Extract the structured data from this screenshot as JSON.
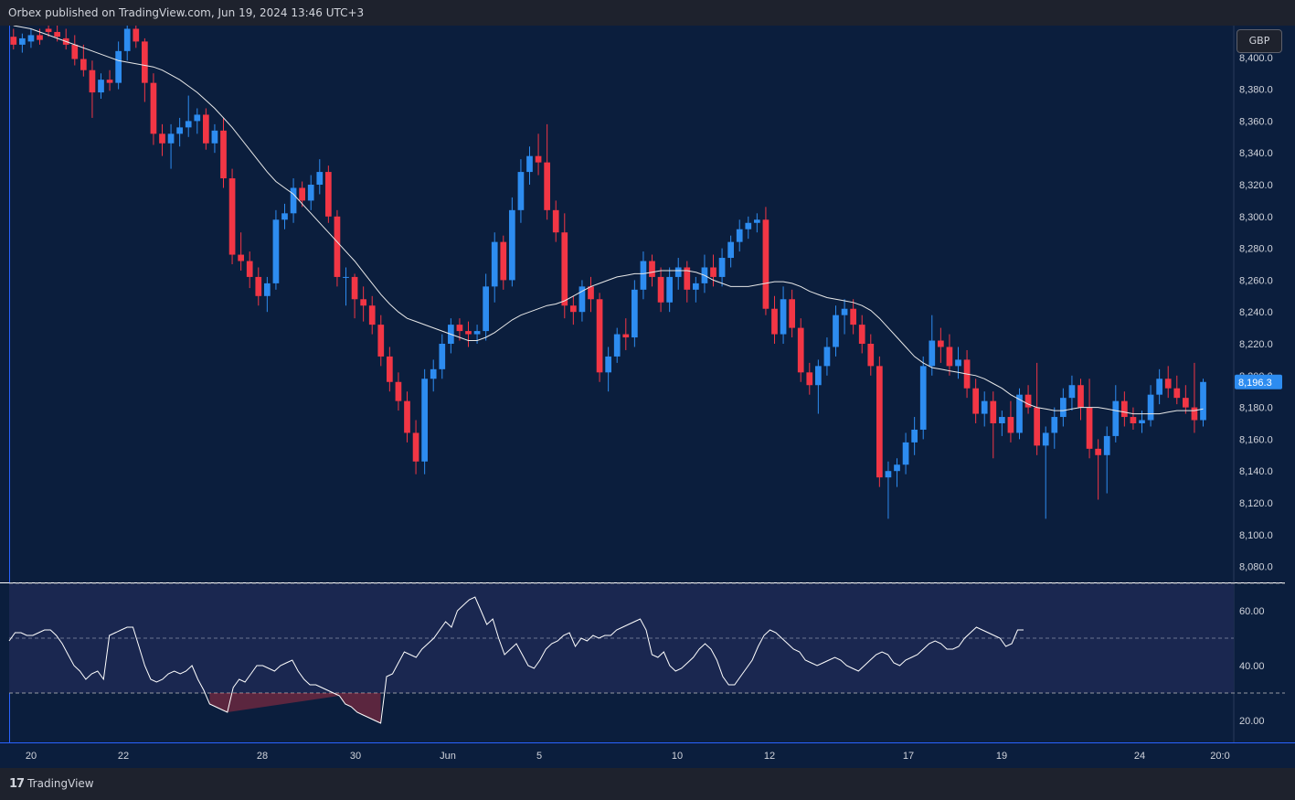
{
  "header": {
    "publisher_text": "Orbex published on TradingView.com, Jun 19, 2024 13:46 UTC+3"
  },
  "currency": "GBP",
  "footer": {
    "logo_mark": "17",
    "logo_text": "TradingView"
  },
  "colors": {
    "background": "#0b1e3d",
    "up": "#2d8cf0",
    "down": "#f23645",
    "ma": "#e8e8e8",
    "rsi": "#ffffff",
    "rsi_band": "#1a2750",
    "price_badge": "#2d8cf0"
  },
  "chart_data": [
    {
      "type": "candlestick",
      "title": "",
      "currency": "GBP",
      "last_price_label": "8,196.3",
      "ylim": [
        8070,
        8420
      ],
      "y_ticks": [
        8080,
        8100,
        8120,
        8140,
        8160,
        8180,
        8200,
        8220,
        8240,
        8260,
        8280,
        8300,
        8320,
        8340,
        8360,
        8380,
        8400
      ],
      "y_tick_labels": [
        "8,080.0",
        "8,100.0",
        "8,120.0",
        "8,140.0",
        "8,160.0",
        "8,180.0",
        "8,200.0",
        "8,220.0",
        "8,240.0",
        "8,260.0",
        "8,280.0",
        "8,300.0",
        "8,320.0",
        "8,340.0",
        "8,360.0",
        "8,380.0",
        "8,400.0"
      ],
      "x_tick_labels": [
        "20",
        "22",
        "28",
        "30",
        "Jun",
        "5",
        "10",
        "12",
        "17",
        "19",
        "24",
        "20:0"
      ],
      "candles": [
        [
          8413,
          8418,
          8405,
          8408
        ],
        [
          8408,
          8415,
          8403,
          8412
        ],
        [
          8410,
          8418,
          8406,
          8414
        ],
        [
          8414,
          8418,
          8408,
          8411
        ],
        [
          8418,
          8424,
          8413,
          8416
        ],
        [
          8416,
          8421,
          8410,
          8413
        ],
        [
          8412,
          8418,
          8405,
          8408
        ],
        [
          8408,
          8414,
          8395,
          8399
        ],
        [
          8399,
          8408,
          8388,
          8392
        ],
        [
          8392,
          8398,
          8362,
          8378
        ],
        [
          8378,
          8390,
          8374,
          8386
        ],
        [
          8386,
          8392,
          8379,
          8384
        ],
        [
          8384,
          8410,
          8380,
          8404
        ],
        [
          8404,
          8422,
          8398,
          8418
        ],
        [
          8418,
          8422,
          8406,
          8410
        ],
        [
          8410,
          8412,
          8372,
          8384
        ],
        [
          8384,
          8390,
          8345,
          8352
        ],
        [
          8352,
          8358,
          8338,
          8346
        ],
        [
          8346,
          8358,
          8330,
          8352
        ],
        [
          8352,
          8362,
          8344,
          8356
        ],
        [
          8356,
          8376,
          8350,
          8360
        ],
        [
          8360,
          8368,
          8352,
          8364
        ],
        [
          8364,
          8368,
          8342,
          8346
        ],
        [
          8346,
          8358,
          8340,
          8354
        ],
        [
          8354,
          8362,
          8318,
          8324
        ],
        [
          8324,
          8330,
          8270,
          8276
        ],
        [
          8276,
          8290,
          8266,
          8272
        ],
        [
          8272,
          8278,
          8255,
          8262
        ],
        [
          8262,
          8268,
          8244,
          8250
        ],
        [
          8250,
          8262,
          8240,
          8258
        ],
        [
          8258,
          8304,
          8254,
          8298
        ],
        [
          8298,
          8308,
          8292,
          8302
        ],
        [
          8302,
          8324,
          8296,
          8318
        ],
        [
          8318,
          8322,
          8306,
          8310
        ],
        [
          8310,
          8326,
          8304,
          8320
        ],
        [
          8320,
          8336,
          8314,
          8328
        ],
        [
          8328,
          8332,
          8296,
          8300
        ],
        [
          8300,
          8304,
          8256,
          8262
        ],
        [
          8262,
          8268,
          8244,
          8262
        ],
        [
          8262,
          8264,
          8236,
          8248
        ],
        [
          8248,
          8256,
          8234,
          8244
        ],
        [
          8244,
          8250,
          8226,
          8232
        ],
        [
          8232,
          8238,
          8206,
          8212
        ],
        [
          8212,
          8218,
          8190,
          8196
        ],
        [
          8196,
          8202,
          8178,
          8184
        ],
        [
          8184,
          8190,
          8158,
          8164
        ],
        [
          8164,
          8172,
          8138,
          8146
        ],
        [
          8146,
          8204,
          8138,
          8198
        ],
        [
          8198,
          8210,
          8190,
          8204
        ],
        [
          8204,
          8226,
          8198,
          8220
        ],
        [
          8220,
          8236,
          8214,
          8232
        ],
        [
          8232,
          8236,
          8222,
          8228
        ],
        [
          8228,
          8234,
          8218,
          8226
        ],
        [
          8226,
          8232,
          8220,
          8228
        ],
        [
          8228,
          8264,
          8222,
          8256
        ],
        [
          8256,
          8290,
          8246,
          8284
        ],
        [
          8284,
          8288,
          8254,
          8260
        ],
        [
          8260,
          8312,
          8256,
          8304
        ],
        [
          8304,
          8336,
          8296,
          8328
        ],
        [
          8328,
          8344,
          8320,
          8338
        ],
        [
          8338,
          8352,
          8326,
          8334
        ],
        [
          8334,
          8358,
          8298,
          8304
        ],
        [
          8304,
          8310,
          8284,
          8290
        ],
        [
          8290,
          8302,
          8236,
          8244
        ],
        [
          8244,
          8250,
          8232,
          8240
        ],
        [
          8240,
          8260,
          8234,
          8256
        ],
        [
          8256,
          8262,
          8240,
          8248
        ],
        [
          8248,
          8252,
          8196,
          8202
        ],
        [
          8202,
          8218,
          8190,
          8212
        ],
        [
          8212,
          8230,
          8208,
          8226
        ],
        [
          8226,
          8236,
          8216,
          8224
        ],
        [
          8224,
          8260,
          8218,
          8254
        ],
        [
          8254,
          8278,
          8248,
          8272
        ],
        [
          8272,
          8276,
          8256,
          8262
        ],
        [
          8262,
          8268,
          8240,
          8246
        ],
        [
          8246,
          8268,
          8240,
          8262
        ],
        [
          8262,
          8274,
          8254,
          8268
        ],
        [
          8268,
          8272,
          8246,
          8254
        ],
        [
          8254,
          8262,
          8246,
          8258
        ],
        [
          8258,
          8276,
          8252,
          8268
        ],
        [
          8268,
          8276,
          8256,
          8262
        ],
        [
          8262,
          8280,
          8256,
          8274
        ],
        [
          8274,
          8288,
          8268,
          8284
        ],
        [
          8284,
          8298,
          8278,
          8292
        ],
        [
          8292,
          8300,
          8286,
          8296
        ],
        [
          8296,
          8302,
          8290,
          8298
        ],
        [
          8298,
          8306,
          8238,
          8242
        ],
        [
          8242,
          8250,
          8220,
          8226
        ],
        [
          8226,
          8256,
          8220,
          8248
        ],
        [
          8248,
          8254,
          8224,
          8230
        ],
        [
          8230,
          8236,
          8196,
          8202
        ],
        [
          8202,
          8208,
          8188,
          8194
        ],
        [
          8194,
          8210,
          8176,
          8206
        ],
        [
          8206,
          8224,
          8200,
          8218
        ],
        [
          8218,
          8244,
          8212,
          8238
        ],
        [
          8238,
          8248,
          8226,
          8242
        ],
        [
          8242,
          8248,
          8226,
          8232
        ],
        [
          8232,
          8238,
          8214,
          8220
        ],
        [
          8220,
          8226,
          8200,
          8206
        ],
        [
          8206,
          8212,
          8130,
          8136
        ],
        [
          8136,
          8146,
          8110,
          8140
        ],
        [
          8140,
          8148,
          8130,
          8144
        ],
        [
          8144,
          8164,
          8138,
          8158
        ],
        [
          8158,
          8174,
          8150,
          8166
        ],
        [
          8166,
          8212,
          8160,
          8206
        ],
        [
          8206,
          8238,
          8200,
          8222
        ],
        [
          8222,
          8230,
          8208,
          8218
        ],
        [
          8218,
          8226,
          8200,
          8206
        ],
        [
          8206,
          8218,
          8198,
          8210
        ],
        [
          8210,
          8216,
          8186,
          8192
        ],
        [
          8192,
          8198,
          8170,
          8176
        ],
        [
          8176,
          8190,
          8168,
          8184
        ],
        [
          8184,
          8190,
          8148,
          8170
        ],
        [
          8170,
          8178,
          8162,
          8174
        ],
        [
          8174,
          8184,
          8158,
          8164
        ],
        [
          8164,
          8192,
          8160,
          8188
        ],
        [
          8188,
          8194,
          8176,
          8180
        ],
        [
          8180,
          8208,
          8150,
          8156
        ],
        [
          8156,
          8168,
          8110,
          8164
        ],
        [
          8164,
          8180,
          8154,
          8174
        ],
        [
          8174,
          8192,
          8168,
          8186
        ],
        [
          8186,
          8200,
          8178,
          8194
        ],
        [
          8194,
          8198,
          8172,
          8180
        ],
        [
          8180,
          8198,
          8148,
          8154
        ],
        [
          8154,
          8160,
          8122,
          8150
        ],
        [
          8150,
          8168,
          8126,
          8162
        ],
        [
          8162,
          8194,
          8158,
          8184
        ],
        [
          8184,
          8190,
          8168,
          8174
        ],
        [
          8174,
          8180,
          8166,
          8170
        ],
        [
          8170,
          8178,
          8164,
          8172
        ],
        [
          8172,
          8194,
          8168,
          8188
        ],
        [
          8188,
          8204,
          8182,
          8198
        ],
        [
          8198,
          8206,
          8186,
          8192
        ],
        [
          8192,
          8200,
          8182,
          8186
        ],
        [
          8186,
          8194,
          8176,
          8180
        ],
        [
          8180,
          8208,
          8164,
          8172
        ],
        [
          8172,
          8198,
          8168,
          8196
        ]
      ],
      "moving_average": [
        8420,
        8419,
        8418,
        8416,
        8414,
        8412,
        8410,
        8408,
        8406,
        8404,
        8402,
        8400,
        8398,
        8397,
        8396,
        8395,
        8394,
        8392,
        8389,
        8386,
        8382,
        8378,
        8373,
        8368,
        8362,
        8356,
        8349,
        8342,
        8335,
        8328,
        8322,
        8318,
        8314,
        8308,
        8302,
        8296,
        8290,
        8284,
        8278,
        8272,
        8265,
        8258,
        8251,
        8245,
        8240,
        8236,
        8234,
        8232,
        8230,
        8228,
        8226,
        8224,
        8222,
        8222,
        8224,
        8227,
        8231,
        8235,
        8238,
        8240,
        8242,
        8244,
        8245,
        8247,
        8250,
        8253,
        8256,
        8258,
        8260,
        8262,
        8263,
        8264,
        8264,
        8265,
        8266,
        8266,
        8266,
        8266,
        8265,
        8263,
        8260,
        8258,
        8256,
        8256,
        8256,
        8257,
        8258,
        8259,
        8259,
        8258,
        8256,
        8253,
        8251,
        8249,
        8248,
        8247,
        8246,
        8244,
        8241,
        8236,
        8230,
        8224,
        8218,
        8212,
        8208,
        8205,
        8204,
        8203,
        8202,
        8201,
        8200,
        8198,
        8195,
        8192,
        8188,
        8185,
        8182,
        8180,
        8179,
        8178,
        8178,
        8179,
        8180,
        8180,
        8180,
        8179,
        8178,
        8177,
        8176,
        8176,
        8176,
        8176,
        8177,
        8178,
        8178,
        8178,
        8179
      ]
    },
    {
      "type": "line",
      "title": "",
      "ylim": [
        12,
        70
      ],
      "y_ticks": [
        20,
        40,
        60
      ],
      "y_tick_labels": [
        "20.00",
        "40.00",
        "60.00"
      ],
      "band_upper": 70,
      "band_lower": 30,
      "midline": 50,
      "values": [
        49,
        52,
        52,
        51,
        51,
        52,
        53,
        53,
        51,
        48,
        44,
        40,
        38,
        35,
        37,
        38,
        35,
        51,
        52,
        53,
        54,
        54,
        47,
        40,
        35,
        34,
        35,
        37,
        38,
        37,
        38,
        40,
        35,
        31,
        26,
        25,
        24,
        23,
        32,
        35,
        34,
        37,
        40,
        40,
        39,
        38,
        40,
        41,
        42,
        38,
        35,
        33,
        33,
        32,
        31,
        30,
        29,
        26,
        25,
        23,
        22,
        21,
        20,
        19,
        36,
        37,
        41,
        45,
        44,
        43,
        46,
        48,
        50,
        53,
        56,
        54,
        60,
        62,
        64,
        65,
        60,
        55,
        57,
        50,
        44,
        46,
        48,
        44,
        40,
        39,
        42,
        46,
        48,
        49,
        51,
        52,
        47,
        50,
        49,
        51,
        50,
        51,
        51,
        53,
        54,
        55,
        56,
        57,
        53,
        44,
        43,
        45,
        40,
        38,
        39,
        41,
        43,
        46,
        48,
        46,
        42,
        36,
        33,
        33,
        36,
        39,
        42,
        47,
        51,
        53,
        52,
        50,
        48,
        46,
        45,
        42,
        41,
        40,
        41,
        42,
        43,
        42,
        40,
        39,
        38,
        40,
        42,
        44,
        45,
        44,
        41,
        40,
        42,
        43,
        44,
        46,
        48,
        49,
        48,
        46,
        46,
        47,
        50,
        52,
        54,
        53,
        52,
        51,
        50,
        47,
        48,
        53,
        53
      ]
    }
  ]
}
